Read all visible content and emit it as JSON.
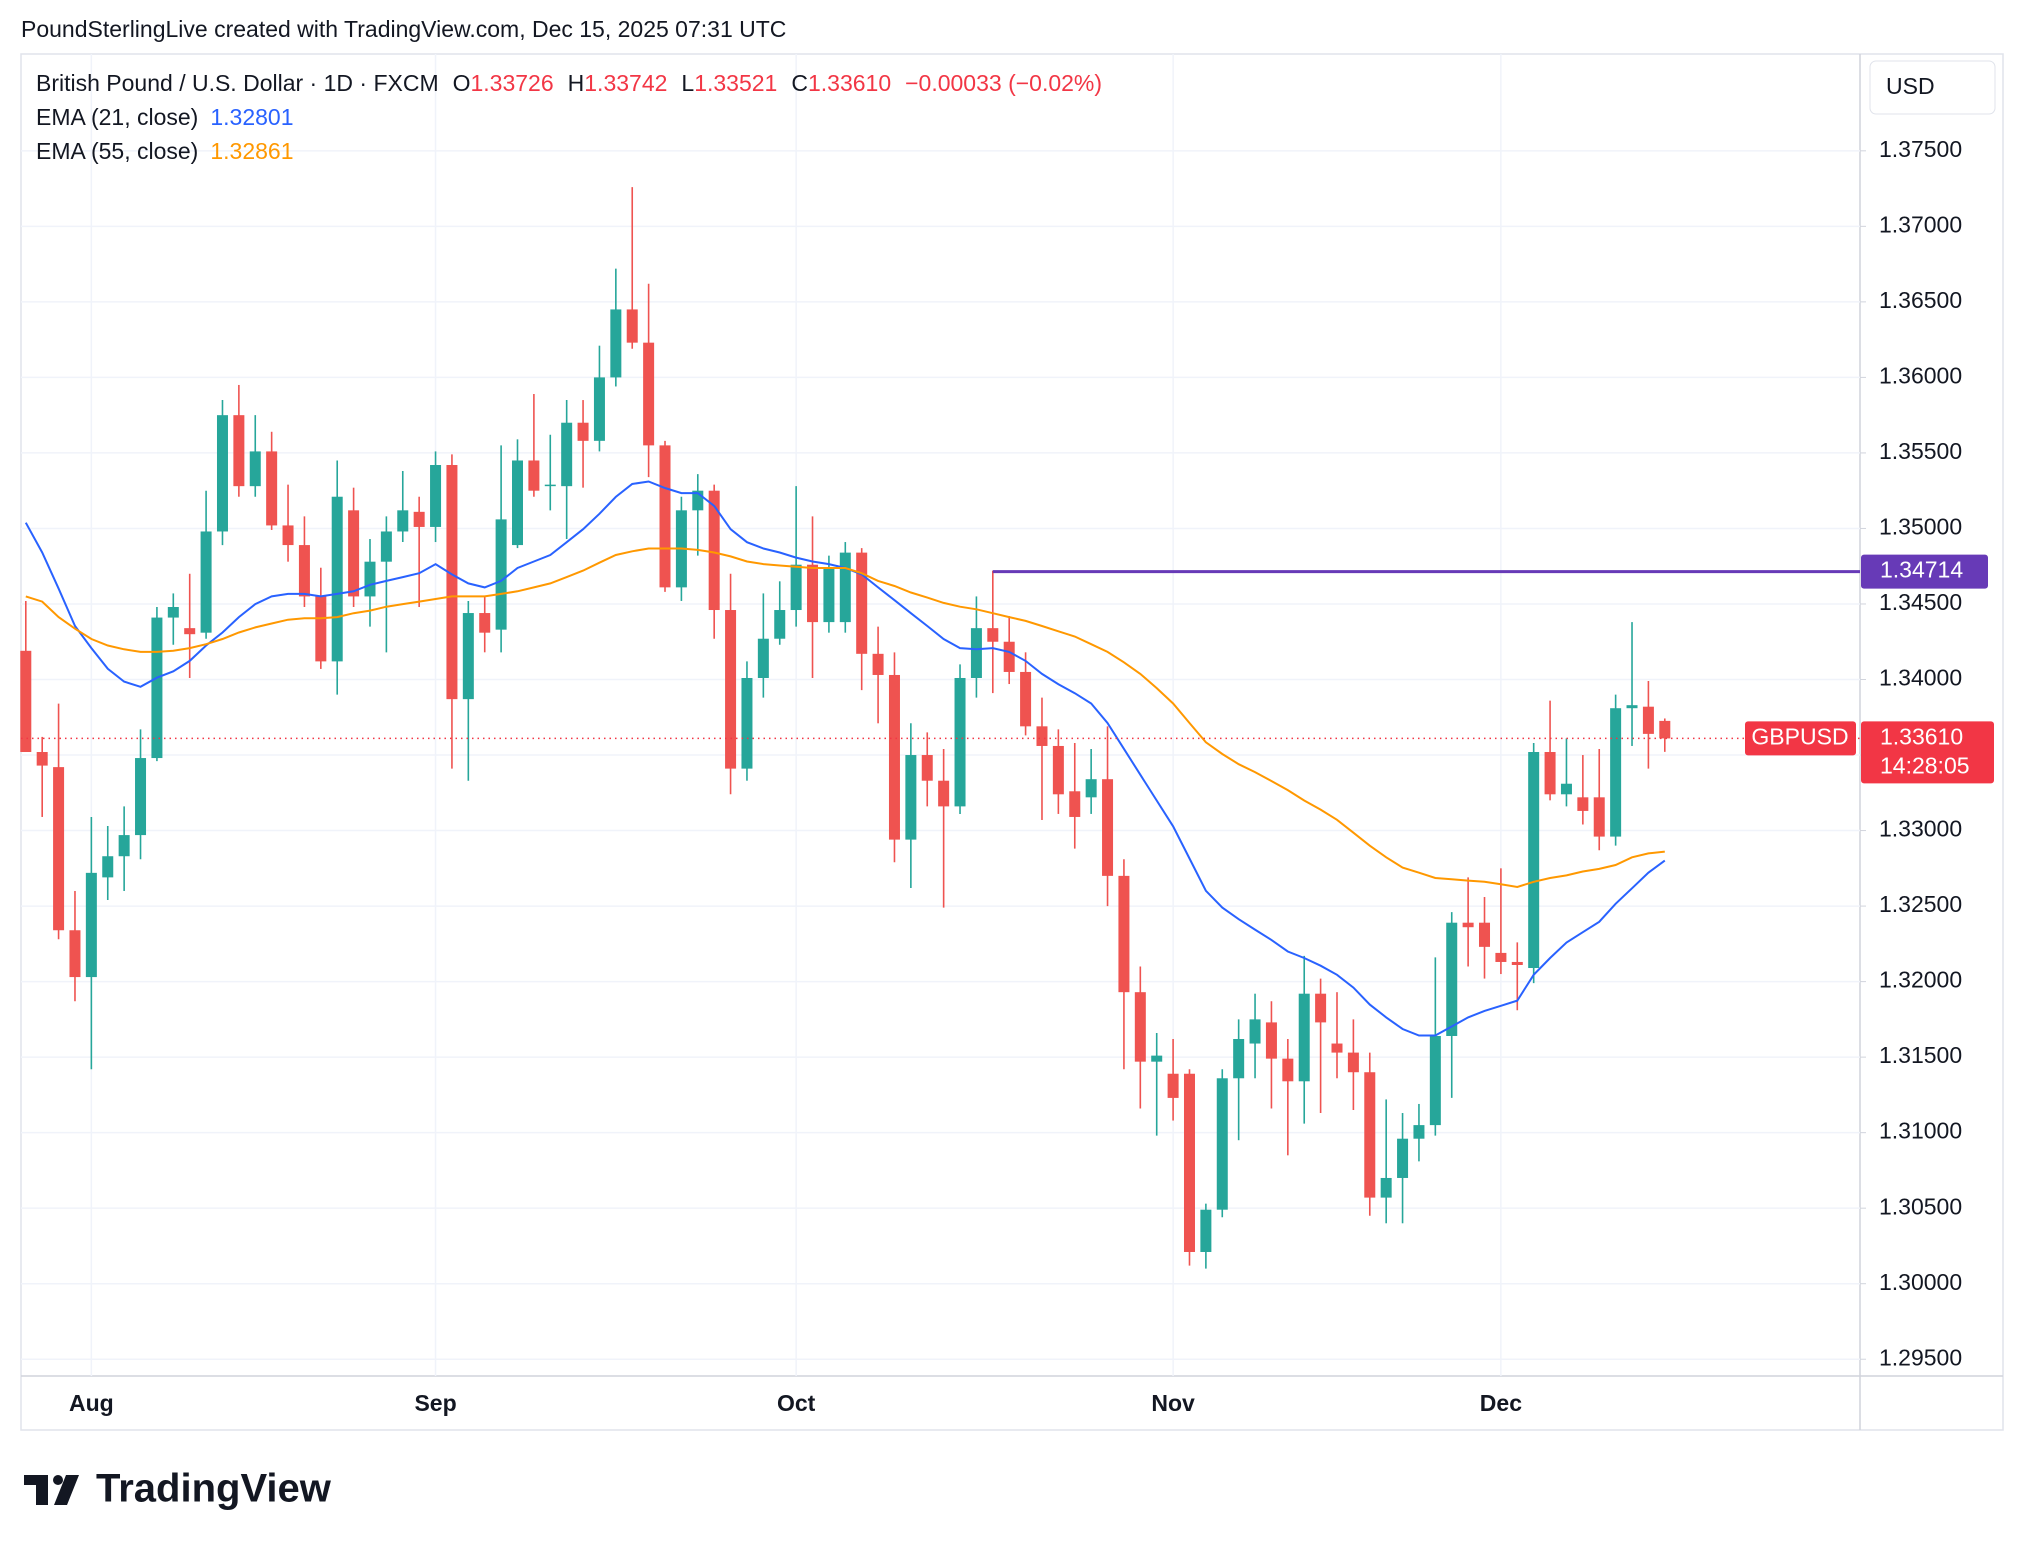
{
  "credit": "PoundSterlingLive created with TradingView.com, Dec 15, 2025 07:31 UTC",
  "logo": "TradingView",
  "header": {
    "symbol": "British Pound / U.S. Dollar · 1D · FXCM",
    "ohlc": [
      {
        "key": "O",
        "value": "1.33726"
      },
      {
        "key": "H",
        "value": "1.33742"
      },
      {
        "key": "L",
        "value": "1.33521"
      },
      {
        "key": "C",
        "value": "1.33610"
      }
    ],
    "change": "−0.00033 (−0.02%)"
  },
  "chart_data": {
    "type": "candlestick",
    "currency": "USD",
    "up_color": "#26a69a",
    "down_color": "#ef5350",
    "categories": [
      null,
      null,
      null,
      null,
      "Aug",
      null,
      null,
      null,
      null,
      null,
      null,
      null,
      null,
      null,
      null,
      null,
      null,
      null,
      null,
      null,
      null,
      null,
      null,
      null,
      null,
      "Sep",
      null,
      null,
      null,
      null,
      null,
      null,
      null,
      null,
      null,
      null,
      null,
      null,
      null,
      null,
      null,
      null,
      null,
      null,
      null,
      null,
      null,
      "Oct",
      null,
      null,
      null,
      null,
      null,
      null,
      null,
      null,
      null,
      null,
      null,
      null,
      null,
      null,
      null,
      null,
      null,
      null,
      null,
      null,
      null,
      null,
      "Nov",
      null,
      null,
      null,
      null,
      null,
      null,
      null,
      null,
      null,
      null,
      null,
      null,
      null,
      null,
      null,
      null,
      null,
      null,
      null,
      "Dec",
      null,
      null,
      null,
      null,
      null,
      null,
      null,
      null,
      null,
      null
    ],
    "open": [
      1.3419,
      1.3352,
      1.3342,
      1.3234,
      1.3203,
      1.3269,
      1.3283,
      1.3297,
      1.3348,
      1.3441,
      1.3434,
      1.3431,
      1.3498,
      1.3575,
      1.3528,
      1.3551,
      1.3502,
      1.3489,
      1.3455,
      1.3412,
      1.3512,
      1.3455,
      1.3478,
      1.3498,
      1.3511,
      1.3501,
      1.3542,
      1.3387,
      1.3444,
      1.3433,
      1.3489,
      1.3545,
      1.3528,
      1.3528,
      1.357,
      1.3558,
      1.36,
      1.3645,
      1.3623,
      1.3555,
      1.3461,
      1.3512,
      1.3525,
      1.3446,
      1.3341,
      1.3401,
      1.3427,
      1.3446,
      1.3476,
      1.3438,
      1.3438,
      1.3484,
      1.3417,
      1.3403,
      1.3294,
      1.335,
      1.3333,
      1.3316,
      1.3401,
      1.3434,
      1.3425,
      1.3405,
      1.3369,
      1.3356,
      1.3326,
      1.3322,
      1.3334,
      1.327,
      1.3193,
      1.3147,
      1.3139,
      1.3139,
      1.3021,
      1.3049,
      1.3136,
      1.3159,
      1.3173,
      1.3149,
      1.3134,
      1.3192,
      1.3159,
      1.3153,
      1.314,
      1.3057,
      1.307,
      1.3096,
      1.3105,
      1.3164,
      1.3239,
      1.3239,
      1.3219,
      1.3213,
      1.3209,
      1.3352,
      1.3324,
      1.3322,
      1.3322,
      1.3296,
      1.3381,
      1.3382,
      1.33726
    ],
    "high": [
      1.3452,
      1.3362,
      1.3384,
      1.326,
      1.3309,
      1.3303,
      1.3316,
      1.3367,
      1.3448,
      1.3457,
      1.347,
      1.3525,
      1.3585,
      1.3595,
      1.3575,
      1.3564,
      1.3529,
      1.3508,
      1.3474,
      1.3545,
      1.3527,
      1.3493,
      1.3508,
      1.3538,
      1.3521,
      1.3551,
      1.3549,
      1.3452,
      1.3455,
      1.3555,
      1.3559,
      1.3589,
      1.3562,
      1.3585,
      1.3585,
      1.3621,
      1.3672,
      1.3726,
      1.3662,
      1.3558,
      1.3521,
      1.3536,
      1.3529,
      1.347,
      1.3412,
      1.3457,
      1.3465,
      1.3528,
      1.3508,
      1.3482,
      1.3491,
      1.3487,
      1.3435,
      1.3418,
      1.3371,
      1.3365,
      1.3354,
      1.341,
      1.3455,
      1.3472,
      1.3442,
      1.3418,
      1.3388,
      1.3367,
      1.3358,
      1.3354,
      1.3369,
      1.3281,
      1.321,
      1.3166,
      1.3162,
      1.3142,
      1.3053,
      1.3142,
      1.3175,
      1.3192,
      1.3187,
      1.3162,
      1.3217,
      1.3202,
      1.3193,
      1.3175,
      1.3153,
      1.3122,
      1.3113,
      1.3119,
      1.3216,
      1.3246,
      1.3269,
      1.3256,
      1.3275,
      1.3226,
      1.3358,
      1.3386,
      1.3361,
      1.335,
      1.3354,
      1.339,
      1.3438,
      1.3399,
      1.33742
    ],
    "low": [
      1.3352,
      1.3309,
      1.3228,
      1.3187,
      1.3142,
      1.3254,
      1.326,
      1.3281,
      1.3346,
      1.3423,
      1.3401,
      1.3427,
      1.3489,
      1.3521,
      1.3521,
      1.3499,
      1.3478,
      1.3448,
      1.3407,
      1.339,
      1.3448,
      1.3435,
      1.3418,
      1.3491,
      1.3448,
      1.3491,
      1.3341,
      1.3333,
      1.3418,
      1.3418,
      1.3487,
      1.3521,
      1.3512,
      1.3493,
      1.3527,
      1.3551,
      1.3594,
      1.3619,
      1.3534,
      1.3458,
      1.3452,
      1.3482,
      1.3427,
      1.3324,
      1.3333,
      1.3388,
      1.3423,
      1.3435,
      1.3401,
      1.3431,
      1.3431,
      1.3393,
      1.3371,
      1.3279,
      1.3262,
      1.3316,
      1.3249,
      1.3311,
      1.3388,
      1.3391,
      1.3397,
      1.3363,
      1.3307,
      1.3311,
      1.3288,
      1.3311,
      1.325,
      1.3142,
      1.3116,
      1.3098,
      1.3108,
      1.3012,
      1.301,
      1.3044,
      1.3095,
      1.3136,
      1.3116,
      1.3085,
      1.3106,
      1.3113,
      1.3136,
      1.3115,
      1.3045,
      1.304,
      1.304,
      1.3081,
      1.3098,
      1.3123,
      1.321,
      1.3202,
      1.3205,
      1.3181,
      1.3199,
      1.332,
      1.3316,
      1.3304,
      1.3287,
      1.329,
      1.3356,
      1.3341,
      1.33521
    ],
    "close": [
      1.3352,
      1.3343,
      1.3234,
      1.3203,
      1.3272,
      1.3283,
      1.3297,
      1.3348,
      1.3441,
      1.3448,
      1.343,
      1.3498,
      1.3575,
      1.3528,
      1.3551,
      1.3502,
      1.3489,
      1.3455,
      1.3412,
      1.3521,
      1.3455,
      1.3478,
      1.3498,
      1.3512,
      1.3501,
      1.3542,
      1.3387,
      1.3444,
      1.3431,
      1.3506,
      1.3545,
      1.3525,
      1.3529,
      1.357,
      1.3558,
      1.36,
      1.3645,
      1.3623,
      1.3555,
      1.3461,
      1.3512,
      1.3525,
      1.3446,
      1.3341,
      1.3401,
      1.3427,
      1.3446,
      1.3476,
      1.3438,
      1.3474,
      1.3484,
      1.3417,
      1.3403,
      1.3294,
      1.335,
      1.3333,
      1.3316,
      1.3401,
      1.3434,
      1.3425,
      1.3405,
      1.3369,
      1.3356,
      1.3324,
      1.3309,
      1.3334,
      1.327,
      1.3193,
      1.3147,
      1.3151,
      1.3123,
      1.3021,
      1.3049,
      1.3136,
      1.3162,
      1.3175,
      1.3149,
      1.3134,
      1.3192,
      1.3173,
      1.3153,
      1.314,
      1.3057,
      1.307,
      1.3096,
      1.3105,
      1.3164,
      1.3239,
      1.3236,
      1.3223,
      1.3213,
      1.3211,
      1.3352,
      1.3324,
      1.3331,
      1.3313,
      1.3296,
      1.3381,
      1.3383,
      1.3364,
      1.3361
    ],
    "series": [
      {
        "name": "EMA (21, close)",
        "color": "#2962ff",
        "values": [
          1.35038,
          1.34841,
          1.34602,
          1.34354,
          1.34208,
          1.34071,
          1.33986,
          1.33952,
          1.34012,
          1.34054,
          1.34123,
          1.34225,
          1.34311,
          1.34413,
          1.34499,
          1.3455,
          1.34567,
          1.34567,
          1.3455,
          1.34567,
          1.34584,
          1.34627,
          1.34653,
          1.34678,
          1.34704,
          1.34764,
          1.34696,
          1.34636,
          1.3461,
          1.34653,
          1.34738,
          1.34781,
          1.34824,
          1.34909,
          1.34995,
          1.35097,
          1.35209,
          1.35294,
          1.35311,
          1.35268,
          1.35234,
          1.35234,
          1.35149,
          1.34995,
          1.34909,
          1.34867,
          1.34841,
          1.34807,
          1.34781,
          1.34764,
          1.34738,
          1.34696,
          1.3461,
          1.34525,
          1.34439,
          1.34354,
          1.34268,
          1.34208,
          1.342,
          1.34208,
          1.34183,
          1.34123,
          1.34037,
          1.33969,
          1.33909,
          1.33841,
          1.33712,
          1.33541,
          1.3337,
          1.33199,
          1.33028,
          1.32815,
          1.32601,
          1.3249,
          1.32413,
          1.32344,
          1.32276,
          1.32199,
          1.32156,
          1.32105,
          1.32045,
          1.3196,
          1.31848,
          1.31763,
          1.31686,
          1.31643,
          1.31643,
          1.31703,
          1.31763,
          1.31806,
          1.3184,
          1.31874,
          1.32045,
          1.32156,
          1.32259,
          1.32327,
          1.32396,
          1.32515,
          1.32618,
          1.32721,
          1.32801
        ]
      },
      {
        "name": "EMA (55, close)",
        "color": "#ff9800",
        "values": [
          1.3455,
          1.34516,
          1.34413,
          1.34336,
          1.34268,
          1.34225,
          1.342,
          1.34183,
          1.34183,
          1.34191,
          1.34208,
          1.34234,
          1.34268,
          1.34311,
          1.34345,
          1.34371,
          1.34396,
          1.34405,
          1.34405,
          1.34413,
          1.34439,
          1.34456,
          1.34482,
          1.34499,
          1.34516,
          1.34533,
          1.3455,
          1.3455,
          1.3455,
          1.34567,
          1.34584,
          1.3461,
          1.34636,
          1.34678,
          1.34721,
          1.34773,
          1.34824,
          1.34849,
          1.34867,
          1.34867,
          1.34867,
          1.34858,
          1.34841,
          1.34815,
          1.34781,
          1.34764,
          1.34755,
          1.34747,
          1.34738,
          1.34738,
          1.34738,
          1.34704,
          1.34653,
          1.34619,
          1.34576,
          1.34542,
          1.34507,
          1.34482,
          1.34465,
          1.34439,
          1.34413,
          1.34388,
          1.34354,
          1.34319,
          1.34285,
          1.34234,
          1.34183,
          1.34114,
          1.34037,
          1.33943,
          1.33841,
          1.33712,
          1.33584,
          1.33507,
          1.33439,
          1.33387,
          1.33328,
          1.33268,
          1.33199,
          1.33139,
          1.33071,
          1.32986,
          1.329,
          1.32823,
          1.32755,
          1.32721,
          1.32686,
          1.32678,
          1.32669,
          1.32661,
          1.32644,
          1.32626,
          1.32661,
          1.32686,
          1.32703,
          1.32729,
          1.32746,
          1.32772,
          1.32823,
          1.32849,
          1.32861
        ]
      }
    ],
    "ylim": [
      1.29389,
      1.38141
    ],
    "yticks": [
      {
        "value": 1.295,
        "label": "1.29500"
      },
      {
        "value": 1.3,
        "label": "1.30000"
      },
      {
        "value": 1.305,
        "label": "1.30500"
      },
      {
        "value": 1.31,
        "label": "1.31000"
      },
      {
        "value": 1.315,
        "label": "1.31500"
      },
      {
        "value": 1.32,
        "label": "1.32000"
      },
      {
        "value": 1.325,
        "label": "1.32500"
      },
      {
        "value": 1.33,
        "label": "1.33000"
      },
      {
        "value": 1.335,
        "label": "1.33500"
      },
      {
        "value": 1.34,
        "label": "1.34000"
      },
      {
        "value": 1.345,
        "label": "1.34500"
      },
      {
        "value": 1.35,
        "label": "1.35000"
      },
      {
        "value": 1.355,
        "label": "1.35500"
      },
      {
        "value": 1.36,
        "label": "1.36000"
      },
      {
        "value": 1.365,
        "label": "1.36500"
      },
      {
        "value": 1.37,
        "label": "1.37000"
      },
      {
        "value": 1.375,
        "label": "1.37500"
      }
    ],
    "grid": true,
    "hline": {
      "value": 1.34714,
      "label": "1.34714",
      "color": "#673ab7",
      "start": 59
    },
    "price_line": {
      "name": "GBPUSD",
      "value": 1.3361,
      "label": "1.33610",
      "countdown": "14:28:05",
      "color": "#f23645"
    }
  }
}
